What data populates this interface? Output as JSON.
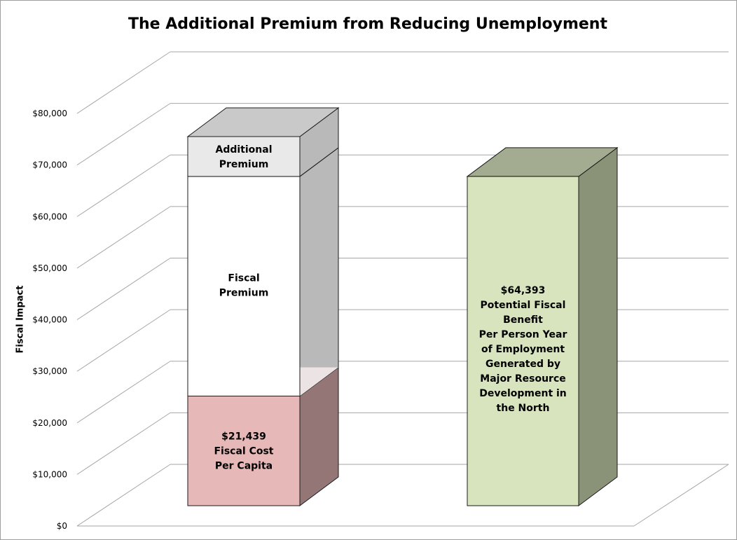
{
  "chart_data": {
    "type": "bar",
    "title": "The Additional Premium from Reducing Unemployment",
    "xlabel": "",
    "ylabel": "Fiscal Impact",
    "ylim": [
      0,
      80000
    ],
    "y_ticks": [
      "$0",
      "$10,000",
      "$20,000",
      "$30,000",
      "$40,000",
      "$50,000",
      "$60,000",
      "$70,000",
      "$80,000"
    ],
    "grid": true,
    "style": "3d-column",
    "bars": [
      {
        "segments": [
          {
            "label": "$21,439\nFiscal Cost\nPer Capita",
            "value": 21439,
            "color": "#e6b8b7"
          },
          {
            "label": "Fiscal\nPremium",
            "value": 42954,
            "color": "#ffffff"
          },
          {
            "label": "Additional\nPremium",
            "value": 7800,
            "color": "#e9e9e9"
          }
        ]
      },
      {
        "segments": [
          {
            "label": "$64,393\nPotential Fiscal\nBenefit\nPer Person Year\nof Employment\nGenerated by\nMajor Resource\nDevelopment in\nthe North",
            "value": 64393,
            "color": "#d7e4bd"
          }
        ]
      }
    ]
  }
}
